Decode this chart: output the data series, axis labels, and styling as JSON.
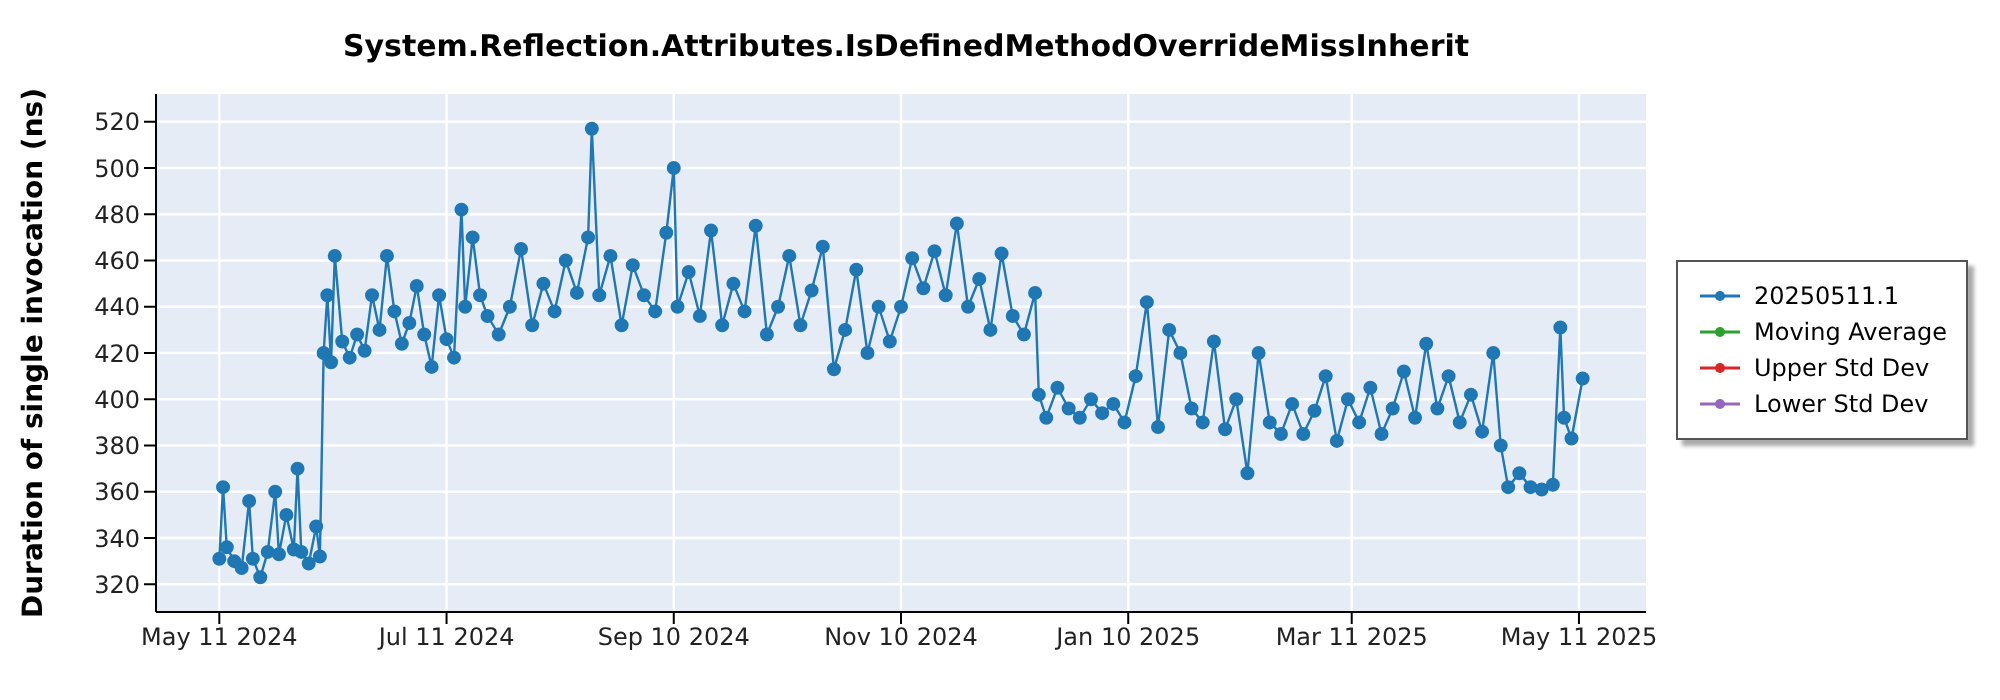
{
  "chart_data": {
    "type": "line",
    "title": "System.Reflection.Attributes.IsDefinedMethodOverrideMissInherit",
    "ylabel": "Duration of single invocation (ns)",
    "x": [
      "2024-05-11",
      "2024-05-12",
      "2024-05-13",
      "2024-05-15",
      "2024-05-17",
      "2024-05-19",
      "2024-05-20",
      "2024-05-22",
      "2024-05-24",
      "2024-05-26",
      "2024-05-27",
      "2024-05-29",
      "2024-05-31",
      "2024-06-01",
      "2024-06-02",
      "2024-06-04",
      "2024-06-06",
      "2024-06-07",
      "2024-06-08",
      "2024-06-09",
      "2024-06-10",
      "2024-06-11",
      "2024-06-13",
      "2024-06-15",
      "2024-06-17",
      "2024-06-19",
      "2024-06-21",
      "2024-06-23",
      "2024-06-25",
      "2024-06-27",
      "2024-06-29",
      "2024-07-01",
      "2024-07-03",
      "2024-07-05",
      "2024-07-07",
      "2024-07-09",
      "2024-07-11",
      "2024-07-13",
      "2024-07-15",
      "2024-07-16",
      "2024-07-18",
      "2024-07-20",
      "2024-07-22",
      "2024-07-25",
      "2024-07-28",
      "2024-07-31",
      "2024-08-03",
      "2024-08-06",
      "2024-08-09",
      "2024-08-12",
      "2024-08-15",
      "2024-08-18",
      "2024-08-19",
      "2024-08-21",
      "2024-08-24",
      "2024-08-27",
      "2024-08-30",
      "2024-09-02",
      "2024-09-05",
      "2024-09-08",
      "2024-09-10",
      "2024-09-11",
      "2024-09-14",
      "2024-09-17",
      "2024-09-20",
      "2024-09-23",
      "2024-09-26",
      "2024-09-29",
      "2024-10-02",
      "2024-10-05",
      "2024-10-08",
      "2024-10-11",
      "2024-10-14",
      "2024-10-17",
      "2024-10-20",
      "2024-10-23",
      "2024-10-26",
      "2024-10-29",
      "2024-11-01",
      "2024-11-04",
      "2024-11-07",
      "2024-11-10",
      "2024-11-13",
      "2024-11-16",
      "2024-11-19",
      "2024-11-22",
      "2024-11-25",
      "2024-11-28",
      "2024-12-01",
      "2024-12-04",
      "2024-12-07",
      "2024-12-10",
      "2024-12-13",
      "2024-12-16",
      "2024-12-17",
      "2024-12-19",
      "2024-12-22",
      "2024-12-25",
      "2024-12-28",
      "2024-12-31",
      "2025-01-03",
      "2025-01-06",
      "2025-01-09",
      "2025-01-12",
      "2025-01-15",
      "2025-01-18",
      "2025-01-21",
      "2025-01-24",
      "2025-01-27",
      "2025-01-30",
      "2025-02-02",
      "2025-02-05",
      "2025-02-08",
      "2025-02-11",
      "2025-02-14",
      "2025-02-17",
      "2025-02-20",
      "2025-02-23",
      "2025-02-26",
      "2025-03-01",
      "2025-03-04",
      "2025-03-07",
      "2025-03-10",
      "2025-03-13",
      "2025-03-16",
      "2025-03-19",
      "2025-03-22",
      "2025-03-25",
      "2025-03-28",
      "2025-03-31",
      "2025-04-03",
      "2025-04-06",
      "2025-04-09",
      "2025-04-12",
      "2025-04-15",
      "2025-04-18",
      "2025-04-20",
      "2025-04-22",
      "2025-04-25",
      "2025-04-28",
      "2025-05-01",
      "2025-05-04",
      "2025-05-06",
      "2025-05-07",
      "2025-05-09",
      "2025-05-12"
    ],
    "series": [
      {
        "name": "20250511.1",
        "color": "#1f77b4",
        "values": [
          331,
          362,
          336,
          330,
          327,
          356,
          331,
          323,
          334,
          360,
          333,
          350,
          335,
          370,
          334,
          329,
          345,
          332,
          420,
          445,
          416,
          462,
          425,
          418,
          428,
          421,
          445,
          430,
          462,
          438,
          424,
          433,
          449,
          428,
          414,
          445,
          426,
          418,
          482,
          440,
          470,
          445,
          436,
          428,
          440,
          465,
          432,
          450,
          438,
          460,
          446,
          470,
          517,
          445,
          462,
          432,
          458,
          445,
          438,
          472,
          500,
          440,
          455,
          436,
          473,
          432,
          450,
          438,
          475,
          428,
          440,
          462,
          432,
          447,
          466,
          413,
          430,
          456,
          420,
          440,
          425,
          440,
          461,
          448,
          464,
          445,
          476,
          440,
          452,
          430,
          463,
          436,
          428,
          446,
          402,
          392,
          405,
          396,
          392,
          400,
          394,
          398,
          390,
          410,
          442,
          388,
          430,
          420,
          396,
          390,
          425,
          387,
          400,
          368,
          420,
          390,
          385,
          398,
          385,
          395,
          410,
          382,
          400,
          390,
          405,
          385,
          396,
          412,
          392,
          424,
          396,
          410,
          390,
          402,
          386,
          420,
          380,
          362,
          368,
          362,
          361,
          363,
          431,
          392,
          383,
          409
        ]
      },
      {
        "name": "Moving Average",
        "color": "#2ca02c",
        "values": [
          null,
          null,
          null,
          null,
          null,
          null,
          null,
          null,
          null,
          null,
          null,
          null,
          null,
          null,
          null,
          null,
          null,
          null,
          null,
          null,
          null,
          null,
          null,
          null,
          null,
          null,
          null,
          null,
          null,
          null,
          null,
          null,
          null,
          null,
          null,
          null,
          null,
          null,
          null,
          null,
          null,
          null,
          null,
          null,
          null,
          null,
          null,
          null,
          null,
          null,
          null,
          null,
          null,
          null,
          null,
          null,
          null,
          null,
          null,
          null,
          null,
          null,
          null,
          null,
          null,
          null,
          null,
          null,
          null,
          null,
          null,
          null,
          null,
          null,
          null,
          null,
          null,
          null,
          null,
          null,
          null,
          null,
          null,
          null,
          null,
          null,
          null,
          null,
          null,
          null,
          null,
          null,
          null,
          null,
          null,
          null,
          null,
          null,
          null,
          null,
          null,
          null,
          null,
          null,
          null,
          null,
          null,
          null,
          null,
          null,
          null,
          null,
          null,
          null,
          null,
          null,
          null,
          null,
          null,
          null,
          null,
          null,
          null,
          null,
          null,
          null,
          null,
          null,
          null,
          null,
          null,
          null,
          null,
          null,
          null,
          null,
          null,
          null,
          null,
          null,
          null,
          null,
          null,
          null,
          null,
          null
        ]
      },
      {
        "name": "Upper Std Dev",
        "color": "#d62728",
        "values": [
          null,
          null,
          null,
          null,
          null,
          null,
          null,
          null,
          null,
          null,
          null,
          null,
          null,
          null,
          null,
          null,
          null,
          null,
          null,
          null,
          null,
          null,
          null,
          null,
          null,
          null,
          null,
          null,
          null,
          null,
          null,
          null,
          null,
          null,
          null,
          null,
          null,
          null,
          null,
          null,
          null,
          null,
          null,
          null,
          null,
          null,
          null,
          null,
          null,
          null,
          null,
          null,
          null,
          null,
          null,
          null,
          null,
          null,
          null,
          null,
          null,
          null,
          null,
          null,
          null,
          null,
          null,
          null,
          null,
          null,
          null,
          null,
          null,
          null,
          null,
          null,
          null,
          null,
          null,
          null,
          null,
          null,
          null,
          null,
          null,
          null,
          null,
          null,
          null,
          null,
          null,
          null,
          null,
          null,
          null,
          null,
          null,
          null,
          null,
          null,
          null,
          null,
          null,
          null,
          null,
          null,
          null,
          null,
          null,
          null,
          null,
          null,
          null,
          null,
          null,
          null,
          null,
          null,
          null,
          null,
          null,
          null,
          null,
          null,
          null,
          null,
          null,
          null,
          null,
          null,
          null,
          null,
          null,
          null,
          null,
          null,
          null,
          null,
          null,
          null,
          null,
          null,
          null,
          null,
          null,
          null
        ]
      },
      {
        "name": "Lower Std Dev",
        "color": "#9467bd",
        "values": [
          null,
          null,
          null,
          null,
          null,
          null,
          null,
          null,
          null,
          null,
          null,
          null,
          null,
          null,
          null,
          null,
          null,
          null,
          null,
          null,
          null,
          null,
          null,
          null,
          null,
          null,
          null,
          null,
          null,
          null,
          null,
          null,
          null,
          null,
          null,
          null,
          null,
          null,
          null,
          null,
          null,
          null,
          null,
          null,
          null,
          null,
          null,
          null,
          null,
          null,
          null,
          null,
          null,
          null,
          null,
          null,
          null,
          null,
          null,
          null,
          null,
          null,
          null,
          null,
          null,
          null,
          null,
          null,
          null,
          null,
          null,
          null,
          null,
          null,
          null,
          null,
          null,
          null,
          null,
          null,
          null,
          null,
          null,
          null,
          null,
          null,
          null,
          null,
          null,
          null,
          null,
          null,
          null,
          null,
          null,
          null,
          null,
          null,
          null,
          null,
          null,
          null,
          null,
          null,
          null,
          null,
          null,
          null,
          null,
          null,
          null,
          null,
          null,
          null,
          null,
          null,
          null,
          null,
          null,
          null,
          null,
          null,
          null,
          null,
          null,
          null,
          null,
          null,
          null,
          null,
          null,
          null,
          null,
          null,
          null,
          null,
          null,
          null,
          null,
          null,
          null,
          null,
          null,
          null,
          null,
          null
        ]
      }
    ],
    "xlim": [
      "2024-04-24",
      "2025-05-29"
    ],
    "xticks": [
      {
        "value": "2024-05-11",
        "label": "May 11 2024"
      },
      {
        "value": "2024-07-11",
        "label": "Jul 11 2024"
      },
      {
        "value": "2024-09-10",
        "label": "Sep 10 2024"
      },
      {
        "value": "2024-11-10",
        "label": "Nov 10 2024"
      },
      {
        "value": "2025-01-10",
        "label": "Jan 10 2025"
      },
      {
        "value": "2025-03-11",
        "label": "Mar 11 2025"
      },
      {
        "value": "2025-05-11",
        "label": "May 11 2025"
      }
    ],
    "ylim": [
      308,
      532
    ],
    "yticks": [
      320,
      340,
      360,
      380,
      400,
      420,
      440,
      460,
      480,
      500,
      520
    ],
    "grid": true,
    "legend": "right",
    "marker": "circle",
    "line_style": "solid"
  }
}
